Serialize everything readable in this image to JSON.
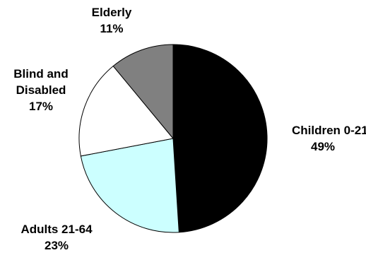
{
  "chart_data": {
    "type": "pie",
    "title": "",
    "start_angle_deg": 0,
    "direction": "clockwise",
    "slices": [
      {
        "label": "Children 0-21",
        "value": 49,
        "value_label": "49%",
        "color": "#000000",
        "label_anchor": "start"
      },
      {
        "label": "Adults 21-64",
        "value": 23,
        "value_label": "23%",
        "color": "#ccffff",
        "label_anchor": "middle"
      },
      {
        "label": "Blind and\nDisabled",
        "value": 17,
        "value_label": "17%",
        "color": "#ffffff",
        "label_anchor": "middle"
      },
      {
        "label": "Elderly",
        "value": 11,
        "value_label": "11%",
        "color": "#808080",
        "label_anchor": "middle"
      }
    ],
    "stroke_color": "#000000",
    "legend": "none"
  }
}
